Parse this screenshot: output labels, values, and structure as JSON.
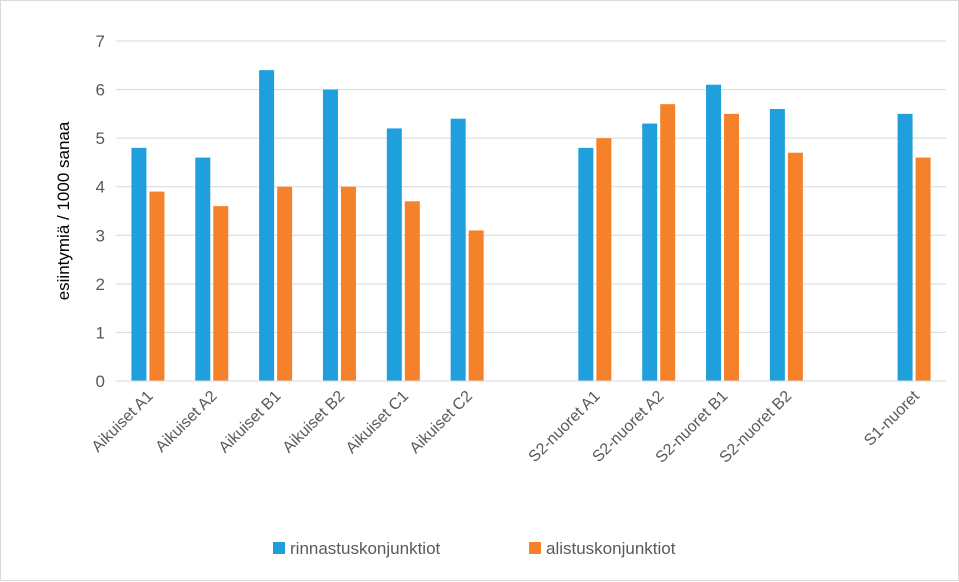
{
  "chart_data": {
    "type": "bar",
    "title": "",
    "xlabel": "",
    "ylabel": "esiintymiä / 1000 sanaa",
    "ylim": [
      0,
      7
    ],
    "yticks": [
      0,
      1,
      2,
      3,
      4,
      5,
      6,
      7
    ],
    "grid": true,
    "legend_position": "bottom",
    "categories": [
      "Aikuiset A1",
      "Aikuiset A2",
      "Aikuiset B1",
      "Aikuiset B2",
      "Aikuiset C1",
      "Aikuiset C2",
      "",
      "S2-nuoret A1",
      "S2-nuoret A2",
      "S2-nuoret B1",
      "S2-nuoret B2",
      "",
      "S1-nuoret"
    ],
    "series": [
      {
        "name": "rinnastuskonjunktiot",
        "color": "#1f9fdb",
        "values": [
          4.8,
          4.6,
          6.4,
          6.0,
          5.2,
          5.4,
          null,
          4.8,
          5.3,
          6.1,
          5.6,
          null,
          5.5
        ]
      },
      {
        "name": "alistuskonjunktiot",
        "color": "#f5822a",
        "values": [
          3.9,
          3.6,
          4.0,
          4.0,
          3.7,
          3.1,
          null,
          5.0,
          5.7,
          5.5,
          4.7,
          null,
          4.6
        ]
      }
    ]
  }
}
